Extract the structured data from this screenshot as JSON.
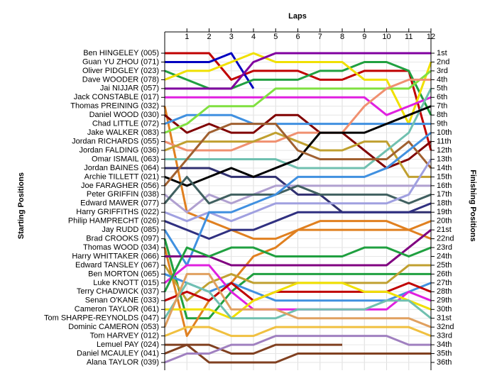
{
  "chart_data": {
    "type": "line",
    "title": "Laps",
    "y_axis_label": "Starting Positions",
    "y2_axis_label": "Finishing Positions",
    "x": [
      0,
      1,
      2,
      3,
      4,
      5,
      6,
      7,
      8,
      9,
      10,
      11,
      12
    ],
    "xlim": [
      0,
      12
    ],
    "xticks": [
      1,
      2,
      3,
      4,
      5,
      6,
      7,
      8,
      9,
      10,
      11,
      12
    ],
    "ylim": [
      1,
      36
    ],
    "yticks": [
      {
        "value": 1,
        "label": "1st"
      },
      {
        "value": 2,
        "label": "2nd"
      },
      {
        "value": 3,
        "label": "3rd"
      },
      {
        "value": 4,
        "label": "4th"
      },
      {
        "value": 5,
        "label": "5th"
      },
      {
        "value": 6,
        "label": "6th"
      },
      {
        "value": 7,
        "label": "7th"
      },
      {
        "value": 8,
        "label": "8th"
      },
      {
        "value": 9,
        "label": "9th"
      },
      {
        "value": 10,
        "label": "10th"
      },
      {
        "value": 11,
        "label": "11th"
      },
      {
        "value": 12,
        "label": "12th"
      },
      {
        "value": 13,
        "label": "13th"
      },
      {
        "value": 14,
        "label": "14th"
      },
      {
        "value": 15,
        "label": "15th"
      },
      {
        "value": 16,
        "label": "16th"
      },
      {
        "value": 17,
        "label": "17th"
      },
      {
        "value": 18,
        "label": "18th"
      },
      {
        "value": 19,
        "label": "19th"
      },
      {
        "value": 20,
        "label": "20th"
      },
      {
        "value": 21,
        "label": "21st"
      },
      {
        "value": 22,
        "label": "22nd"
      },
      {
        "value": 23,
        "label": "23rd"
      },
      {
        "value": 24,
        "label": "24th"
      },
      {
        "value": 25,
        "label": "25th"
      },
      {
        "value": 26,
        "label": "26th"
      },
      {
        "value": 27,
        "label": "27th"
      },
      {
        "value": 28,
        "label": "28th"
      },
      {
        "value": 29,
        "label": "29th"
      },
      {
        "value": 30,
        "label": "30th"
      },
      {
        "value": 31,
        "label": "31st"
      },
      {
        "value": 32,
        "label": "32nd"
      },
      {
        "value": 33,
        "label": "33rd"
      },
      {
        "value": 34,
        "label": "34th"
      },
      {
        "value": 35,
        "label": "35th"
      },
      {
        "value": 36,
        "label": "36th"
      }
    ],
    "grid": true,
    "series": [
      {
        "name": "Ben HINGELEY (005)",
        "color": "#c00000",
        "values": [
          1,
          1,
          1,
          4,
          3,
          3,
          3,
          4,
          4,
          3,
          3,
          3,
          12
        ]
      },
      {
        "name": "Guan YU ZHOU (071)",
        "color": "#0000c0",
        "values": [
          2,
          2,
          2,
          1,
          5,
          null,
          null,
          null,
          null,
          null,
          null,
          null,
          null
        ]
      },
      {
        "name": "Oliver PIDGLEY (023)",
        "color": "#20a040",
        "values": [
          3,
          4,
          5,
          5,
          4,
          4,
          4,
          3,
          3,
          2,
          2,
          3,
          8
        ]
      },
      {
        "name": "Dave WOODER (078)",
        "color": "#f0e000",
        "values": [
          4,
          3,
          3,
          2,
          1,
          2,
          2,
          2,
          2,
          4,
          4,
          9,
          2
        ]
      },
      {
        "name": "Jai NIJJAR (057)",
        "color": "#8000a0",
        "values": [
          5,
          5,
          5,
          5,
          2,
          1,
          1,
          1,
          1,
          1,
          1,
          1,
          1
        ]
      },
      {
        "name": "Jack CONSTABLE (017)",
        "color": "#e020e0",
        "values": [
          6,
          6,
          6,
          6,
          6,
          6,
          6,
          6,
          6,
          6,
          8,
          7,
          6
        ]
      },
      {
        "name": "Thomas PREINING (032)",
        "color": "#e08020",
        "values": [
          7,
          19,
          20,
          21,
          22,
          22,
          21,
          21,
          21,
          21,
          21,
          21,
          22
        ]
      },
      {
        "name": "Daniel WOOD (030)",
        "color": "#800000",
        "values": [
          8,
          10,
          9,
          10,
          10,
          8,
          8,
          10,
          10,
          12,
          14,
          13,
          11
        ]
      },
      {
        "name": "Chad LITTLE (072)",
        "color": "#4090e0",
        "values": [
          9,
          8,
          8,
          8,
          9,
          9,
          9,
          9,
          9,
          9,
          9,
          9,
          9
        ]
      },
      {
        "name": "Jake WALKER (083)",
        "color": "#80e040",
        "values": [
          10,
          9,
          7,
          7,
          7,
          5,
          5,
          5,
          5,
          5,
          5,
          5,
          3
        ]
      },
      {
        "name": "Jordan RICHARDS (055)",
        "color": "#f09070",
        "values": [
          11,
          12,
          12,
          12,
          11,
          11,
          10,
          10,
          10,
          7,
          5,
          4,
          4
        ]
      },
      {
        "name": "Jordan FALDING (036)",
        "color": "#c0a030",
        "values": [
          12,
          11,
          11,
          11,
          11,
          10,
          11,
          12,
          12,
          11,
          11,
          15,
          15
        ]
      },
      {
        "name": "Omar ISMAIL (063)",
        "color": "#70c0b0",
        "values": [
          13,
          13,
          13,
          13,
          13,
          13,
          14,
          14,
          14,
          14,
          12,
          10,
          5
        ]
      },
      {
        "name": "Jordan BAINES (064)",
        "color": "#303070",
        "values": [
          14,
          14,
          14,
          15,
          15,
          15,
          17,
          17,
          19,
          19,
          19,
          19,
          19
        ]
      },
      {
        "name": "Archie TILLETT (021)",
        "color": "#000000",
        "values": [
          15,
          16,
          15,
          14,
          15,
          14,
          13,
          10,
          10,
          10,
          9,
          8,
          7
        ]
      },
      {
        "name": "Joe FARAGHER (056)",
        "color": "#a06030",
        "values": [
          16,
          13,
          10,
          9,
          9,
          9,
          12,
          13,
          13,
          13,
          13,
          11,
          14
        ]
      },
      {
        "name": "Peter GRIFFIN (038)",
        "color": "#b0a0d0",
        "values": [
          17,
          19,
          17,
          18,
          17,
          16,
          16,
          16,
          16,
          16,
          16,
          16,
          16
        ]
      },
      {
        "name": "Edward MAWER (077)",
        "color": "#406060",
        "values": [
          18,
          15,
          18,
          17,
          17,
          17,
          16,
          17,
          17,
          17,
          17,
          18,
          17
        ]
      },
      {
        "name": "Harry GRIFFITHS (022)",
        "color": "#a0a0e0",
        "values": [
          19,
          20,
          19,
          20,
          19,
          18,
          18,
          18,
          18,
          18,
          18,
          17,
          13
        ]
      },
      {
        "name": "Philip HAMPRECHT (026)",
        "color": "#303080",
        "values": [
          20,
          21,
          22,
          21,
          21,
          20,
          19,
          19,
          19,
          19,
          19,
          19,
          18
        ]
      },
      {
        "name": "Jay RUDD (085)",
        "color": "#4090e0",
        "values": [
          21,
          25,
          19,
          19,
          18,
          17,
          15,
          15,
          15,
          15,
          14,
          12,
          10
        ]
      },
      {
        "name": "Brad CROOKS (097)",
        "color": "#20a040",
        "values": [
          22,
          31,
          31,
          28,
          26,
          26,
          26,
          26,
          26,
          26,
          26,
          26,
          26
        ]
      },
      {
        "name": "Thomas WOOD (034)",
        "color": "#e08020",
        "values": [
          23,
          33,
          29,
          27,
          24,
          23,
          21,
          20,
          20,
          20,
          20,
          21,
          20
        ]
      },
      {
        "name": "Harry WHITTAKER (066)",
        "color": "#800080",
        "values": [
          24,
          24,
          24,
          25,
          25,
          25,
          25,
          25,
          25,
          25,
          25,
          23,
          21
        ]
      },
      {
        "name": "Edward TANSLEY (067)",
        "color": "#c0a030",
        "values": [
          25,
          29,
          27,
          26,
          27,
          27,
          27,
          27,
          27,
          27,
          27,
          25,
          25
        ]
      },
      {
        "name": "Ben MORTON (065)",
        "color": "#4090e0",
        "values": [
          26,
          27,
          28,
          27,
          28,
          29,
          29,
          29,
          29,
          29,
          29,
          28,
          27
        ]
      },
      {
        "name": "Luke KNOTT (015)",
        "color": "#e020e0",
        "values": [
          27,
          25,
          25,
          28,
          30,
          30,
          30,
          30,
          30,
          30,
          30,
          28,
          29
        ]
      },
      {
        "name": "Terry CHADWICK (037)",
        "color": "#20a040",
        "values": [
          28,
          23,
          24,
          23,
          23,
          24,
          24,
          24,
          24,
          23,
          23,
          24,
          23
        ]
      },
      {
        "name": "Senan O'KANE (033)",
        "color": "#c00000",
        "values": [
          29,
          28,
          29,
          27,
          29,
          28,
          28,
          28,
          28,
          28,
          28,
          27,
          28
        ]
      },
      {
        "name": "Cameron TAYLOR (061)",
        "color": "#f0e000",
        "values": [
          30,
          30,
          30,
          31,
          29,
          28,
          27,
          27,
          27,
          28,
          28,
          29,
          30
        ]
      },
      {
        "name": "Tom SHARPE-REYNOLDS (047)",
        "color": "#70c0b0",
        "values": [
          31,
          27,
          28,
          31,
          31,
          31,
          30,
          30,
          30,
          30,
          29,
          29,
          31
        ]
      },
      {
        "name": "Dominic CAMERON (053)",
        "color": "#e0a060",
        "values": [
          32,
          26,
          26,
          30,
          30,
          30,
          31,
          31,
          31,
          31,
          31,
          31,
          32
        ]
      },
      {
        "name": "Tom HARVEY (012)",
        "color": "#f0c040",
        "values": [
          33,
          32,
          32,
          33,
          33,
          32,
          32,
          32,
          32,
          32,
          32,
          32,
          33
        ]
      },
      {
        "name": "Lemuel PAY (024)",
        "color": "#804020",
        "values": [
          34,
          34,
          34,
          35,
          35,
          34,
          34,
          34,
          34,
          null,
          null,
          null,
          null
        ]
      },
      {
        "name": "Daniel MCAULEY (041)",
        "color": "#804020",
        "values": [
          35,
          34,
          36,
          36,
          36,
          36,
          35,
          35,
          35,
          35,
          35,
          35,
          35
        ]
      },
      {
        "name": "Alana TAYLOR (039)",
        "color": "#a080c0",
        "values": [
          36,
          35,
          35,
          34,
          34,
          33,
          33,
          33,
          33,
          33,
          33,
          34,
          34
        ]
      }
    ]
  }
}
